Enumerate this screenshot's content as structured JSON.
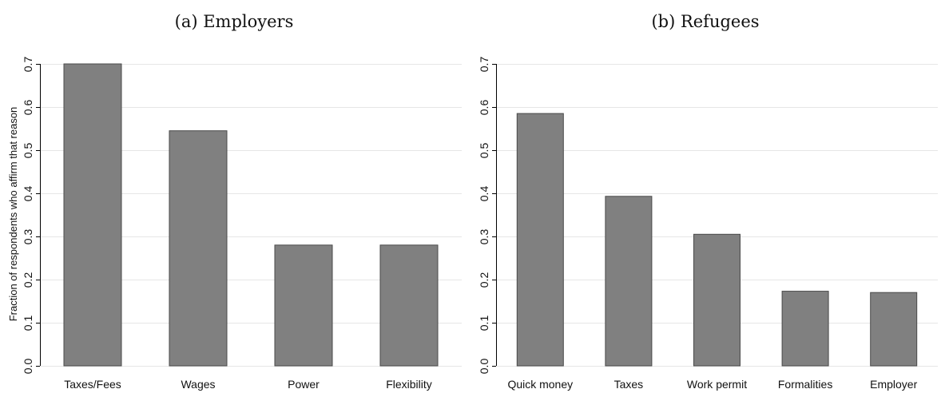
{
  "chart_data": [
    {
      "type": "bar",
      "title": "(a) Employers",
      "ylabel": "Fraction of respondents who affirm that reason",
      "xlabel": "",
      "categories": [
        "Taxes/Fees",
        "Wages",
        "Power",
        "Flexibility"
      ],
      "values": [
        0.7,
        0.545,
        0.28,
        0.28
      ],
      "ylim": [
        0,
        0.7
      ],
      "yticks": [
        "0.0",
        "0.1",
        "0.2",
        "0.3",
        "0.4",
        "0.5",
        "0.6",
        "0.7"
      ],
      "grid": true,
      "bar_color": "#808080"
    },
    {
      "type": "bar",
      "title": "(b) Refugees",
      "ylabel": "",
      "xlabel": "",
      "categories": [
        "Quick money",
        "Taxes",
        "Work permit",
        "Formalities",
        "Employer"
      ],
      "values": [
        0.585,
        0.393,
        0.305,
        0.173,
        0.17
      ],
      "ylim": [
        0,
        0.7
      ],
      "yticks": [
        "0.0",
        "0.1",
        "0.2",
        "0.3",
        "0.4",
        "0.5",
        "0.6",
        "0.7"
      ],
      "grid": true,
      "bar_color": "#808080"
    }
  ]
}
